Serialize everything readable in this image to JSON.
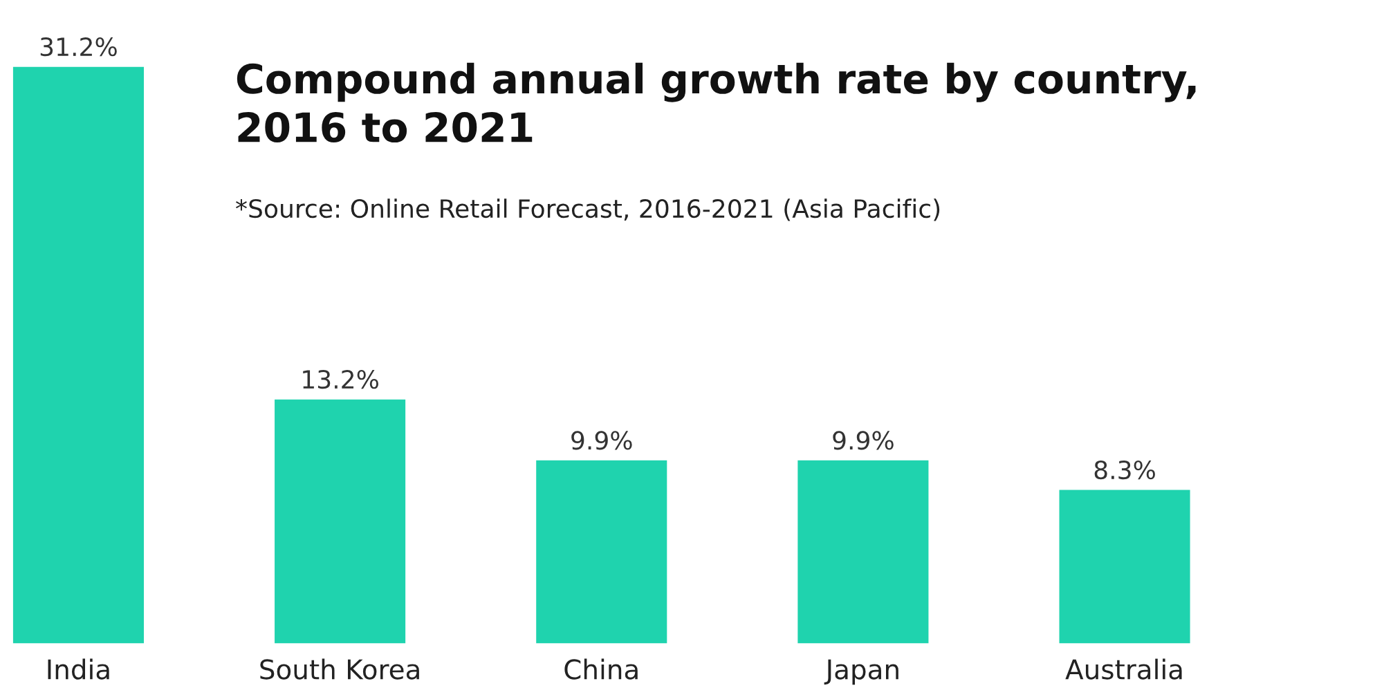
{
  "chart_data": {
    "type": "bar",
    "title": "Compound annual growth rate by country,\n2016 to 2021",
    "annotations": [
      "*Source: Online Retail Forecast, 2016-2021 (Asia Pacific)"
    ],
    "categories": [
      "India",
      "South Korea",
      "China",
      "Japan",
      "Australia"
    ],
    "values": [
      31.2,
      13.2,
      9.9,
      9.9,
      8.3
    ],
    "value_labels": [
      "31.2%",
      "13.2%",
      "9.9%",
      "9.9%",
      "8.3%"
    ],
    "color": "#1fd3ae",
    "grid": false,
    "legend": false
  }
}
